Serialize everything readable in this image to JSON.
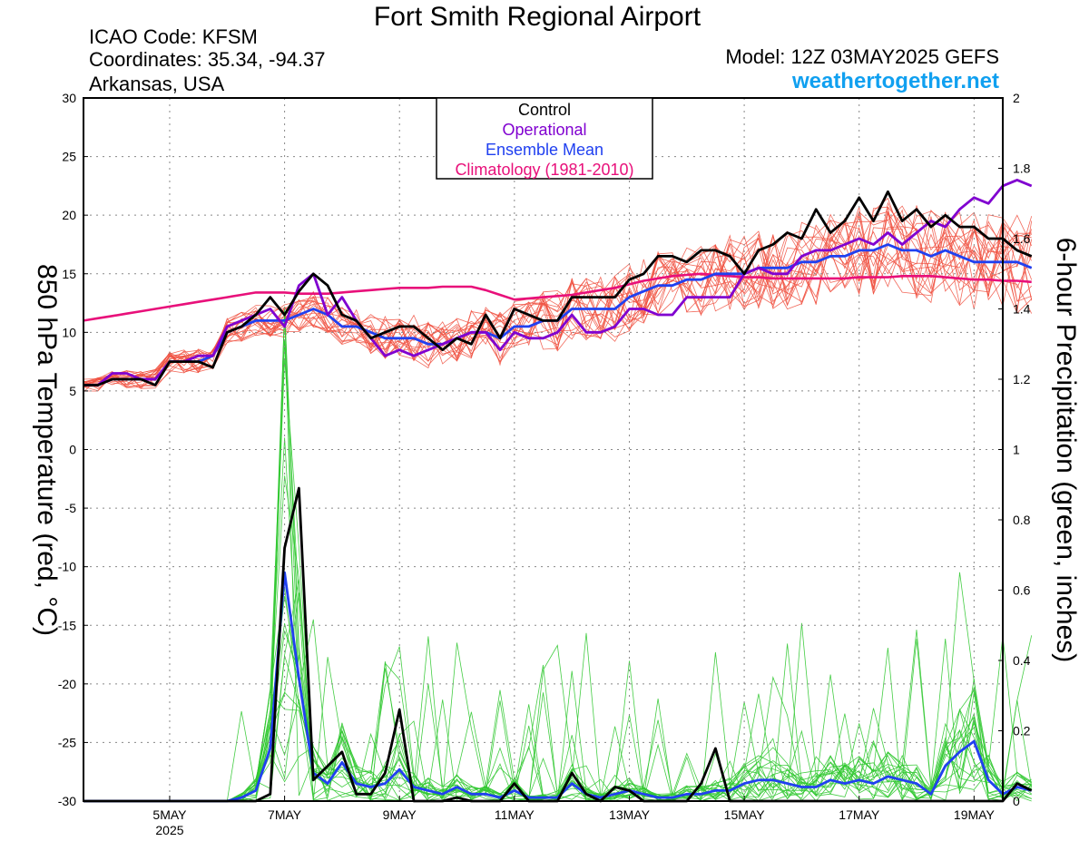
{
  "header": {
    "title": "Fort Smith Regional Airport",
    "icao": "ICAO Code: KFSM",
    "coords": "Coordinates: 35.34, -94.37",
    "region": "Arkansas, USA",
    "model": "Model: 12Z 03MAY2025 GEFS",
    "site": "weathertogether.net"
  },
  "colors": {
    "control": "#000000",
    "operational": "#8000d0",
    "mean": "#2040f0",
    "climatology": "#e8107a",
    "members_temp": "#f05040",
    "members_precip": "#30c830",
    "site": "#10a0f0"
  },
  "chart_data": {
    "type": "line",
    "title": "Fort Smith Regional Airport",
    "ylabel": "850 hPa Temperature (red, °C)",
    "y2label": "6-hour Precipitation (green, inches)",
    "ylim": [
      -30,
      30
    ],
    "y2lim": [
      0,
      2
    ],
    "xlim": [
      "2025-05-03T12:00",
      "2025-05-19T12:00"
    ],
    "x_step_hours": 6,
    "grid": true,
    "legend_position": "top-center",
    "legend": [
      "Control",
      "Operational",
      "Ensemble Mean",
      "Climatology (1981-2010)"
    ],
    "y_ticks": [
      "30",
      "25",
      "20",
      "15",
      "10",
      "5",
      "0",
      "-5",
      "-10",
      "-15",
      "-20",
      "-25",
      "-30"
    ],
    "y2_ticks": [
      "2",
      "1.8",
      "1.6",
      "1.4",
      "1.2",
      "1",
      "0.8",
      "0.6",
      "0.4",
      "0.2",
      "0"
    ],
    "x_ticks": [
      {
        "x": "2025-05-05",
        "label": "5MAY",
        "sub": "2025"
      },
      {
        "x": "2025-05-07",
        "label": "7MAY"
      },
      {
        "x": "2025-05-09",
        "label": "9MAY"
      },
      {
        "x": "2025-05-11",
        "label": "11MAY"
      },
      {
        "x": "2025-05-13",
        "label": "13MAY"
      },
      {
        "x": "2025-05-15",
        "label": "15MAY"
      },
      {
        "x": "2025-05-17",
        "label": "17MAY"
      },
      {
        "x": "2025-05-19",
        "label": "19MAY"
      }
    ],
    "series": [
      {
        "name": "Control",
        "axis": "temp",
        "values": [
          5.5,
          5.5,
          6.0,
          6.0,
          6.0,
          5.5,
          7.5,
          7.5,
          7.5,
          7.0,
          10.0,
          10.5,
          11.5,
          13.0,
          11.5,
          13.5,
          15.0,
          14.0,
          11.5,
          11.0,
          9.5,
          10.0,
          10.5,
          10.5,
          9.5,
          8.5,
          9.5,
          9.0,
          11.5,
          9.5,
          12.0,
          11.5,
          11.0,
          11.0,
          13.0,
          13.0,
          13.0,
          13.0,
          14.5,
          15.0,
          16.5,
          16.5,
          16.0,
          17.0,
          17.0,
          16.5,
          15.0,
          17.0,
          17.5,
          18.5,
          18.0,
          20.5,
          18.5,
          19.5,
          21.5,
          19.5,
          22.0,
          19.5,
          20.5,
          19.0,
          20.0,
          19.0,
          19.0,
          18.0,
          18.0,
          17.0,
          16.5
        ]
      },
      {
        "name": "Operational",
        "axis": "temp",
        "values": [
          5.5,
          5.5,
          6.5,
          6.5,
          6.0,
          6.0,
          7.5,
          7.5,
          8.0,
          8.0,
          10.5,
          11.0,
          11.5,
          12.0,
          10.5,
          14.0,
          15.0,
          11.5,
          13.0,
          11.0,
          9.5,
          8.0,
          8.5,
          8.0,
          8.5,
          9.0,
          9.5,
          10.0,
          10.0,
          8.5,
          10.0,
          9.5,
          9.5,
          10.0,
          11.5,
          10.0,
          10.0,
          10.5,
          12.0,
          12.0,
          11.5,
          11.5,
          13.0,
          13.0,
          13.0,
          13.0,
          15.0,
          15.5,
          15.0,
          15.0,
          16.5,
          17.0,
          17.0,
          17.5,
          18.0,
          17.5,
          18.5,
          17.5,
          18.5,
          19.5,
          19.0,
          20.5,
          21.5,
          21.0,
          22.5,
          23.0,
          22.5
        ]
      },
      {
        "name": "Ensemble Mean",
        "axis": "temp",
        "values": [
          5.5,
          5.5,
          6.0,
          6.0,
          6.0,
          6.0,
          7.5,
          7.5,
          7.5,
          8.0,
          10.0,
          10.5,
          11.0,
          11.0,
          11.0,
          11.5,
          12.0,
          11.5,
          10.5,
          10.5,
          10.0,
          9.5,
          9.5,
          9.5,
          9.0,
          9.0,
          9.5,
          10.0,
          10.0,
          9.5,
          10.5,
          10.5,
          11.0,
          11.0,
          12.0,
          12.0,
          12.0,
          12.0,
          13.0,
          13.5,
          14.0,
          14.0,
          14.5,
          14.5,
          15.0,
          15.0,
          15.0,
          15.5,
          15.5,
          15.5,
          16.0,
          16.0,
          16.5,
          16.5,
          17.0,
          17.0,
          17.5,
          17.0,
          17.0,
          16.5,
          17.0,
          16.5,
          16.0,
          16.0,
          16.0,
          16.0,
          15.5
        ]
      },
      {
        "name": "Climatology (1981-2010)",
        "axis": "temp",
        "values": [
          11.0,
          11.2,
          11.4,
          11.6,
          11.8,
          12.0,
          12.2,
          12.4,
          12.6,
          12.8,
          13.0,
          13.2,
          13.4,
          13.4,
          13.4,
          13.3,
          13.3,
          13.3,
          13.4,
          13.5,
          13.6,
          13.7,
          13.8,
          13.8,
          13.8,
          13.9,
          13.9,
          13.9,
          13.6,
          13.2,
          12.8,
          12.9,
          13.0,
          13.1,
          13.2,
          13.4,
          13.6,
          13.8,
          14.1,
          14.4,
          14.6,
          14.8,
          14.9,
          15.0,
          14.9,
          14.8,
          14.7,
          14.7,
          14.6,
          14.6,
          14.6,
          14.6,
          14.6,
          14.6,
          14.7,
          14.7,
          14.7,
          14.8,
          14.8,
          14.8,
          14.7,
          14.6,
          14.5,
          14.5,
          14.4,
          14.4,
          14.3
        ]
      },
      {
        "name": "Control precip",
        "axis": "precip",
        "values": [
          0,
          0,
          0,
          0,
          0,
          0,
          0,
          0,
          0,
          0,
          0,
          0,
          0,
          0.02,
          0.72,
          0.89,
          0.06,
          0.1,
          0.14,
          0.02,
          0.02,
          0.08,
          0.26,
          0,
          0,
          0,
          0.01,
          0,
          0,
          0,
          0.05,
          0,
          0,
          0,
          0.08,
          0.02,
          0,
          0.04,
          0.03,
          0,
          0,
          0,
          0,
          0.05,
          0.15,
          0,
          0,
          0,
          0,
          0,
          0,
          0,
          0,
          0,
          0,
          0,
          0,
          0,
          0,
          0,
          0,
          0,
          0,
          0,
          0,
          0.05,
          0.03
        ]
      },
      {
        "name": "Mean precip",
        "axis": "precip",
        "values": [
          0,
          0,
          0,
          0,
          0,
          0,
          0,
          0,
          0,
          0,
          0,
          0.01,
          0.03,
          0.15,
          0.65,
          0.35,
          0.08,
          0.05,
          0.11,
          0.05,
          0.04,
          0.05,
          0.09,
          0.04,
          0.03,
          0.02,
          0.04,
          0.02,
          0.02,
          0.01,
          0.03,
          0.01,
          0.01,
          0.01,
          0.05,
          0.02,
          0.01,
          0.02,
          0.03,
          0.02,
          0.01,
          0.01,
          0.02,
          0.02,
          0.03,
          0.03,
          0.05,
          0.06,
          0.06,
          0.05,
          0.04,
          0.04,
          0.06,
          0.05,
          0.06,
          0.05,
          0.07,
          0.06,
          0.05,
          0.02,
          0.1,
          0.14,
          0.17,
          0.06,
          0.02,
          0.04,
          0.03
        ]
      }
    ]
  }
}
